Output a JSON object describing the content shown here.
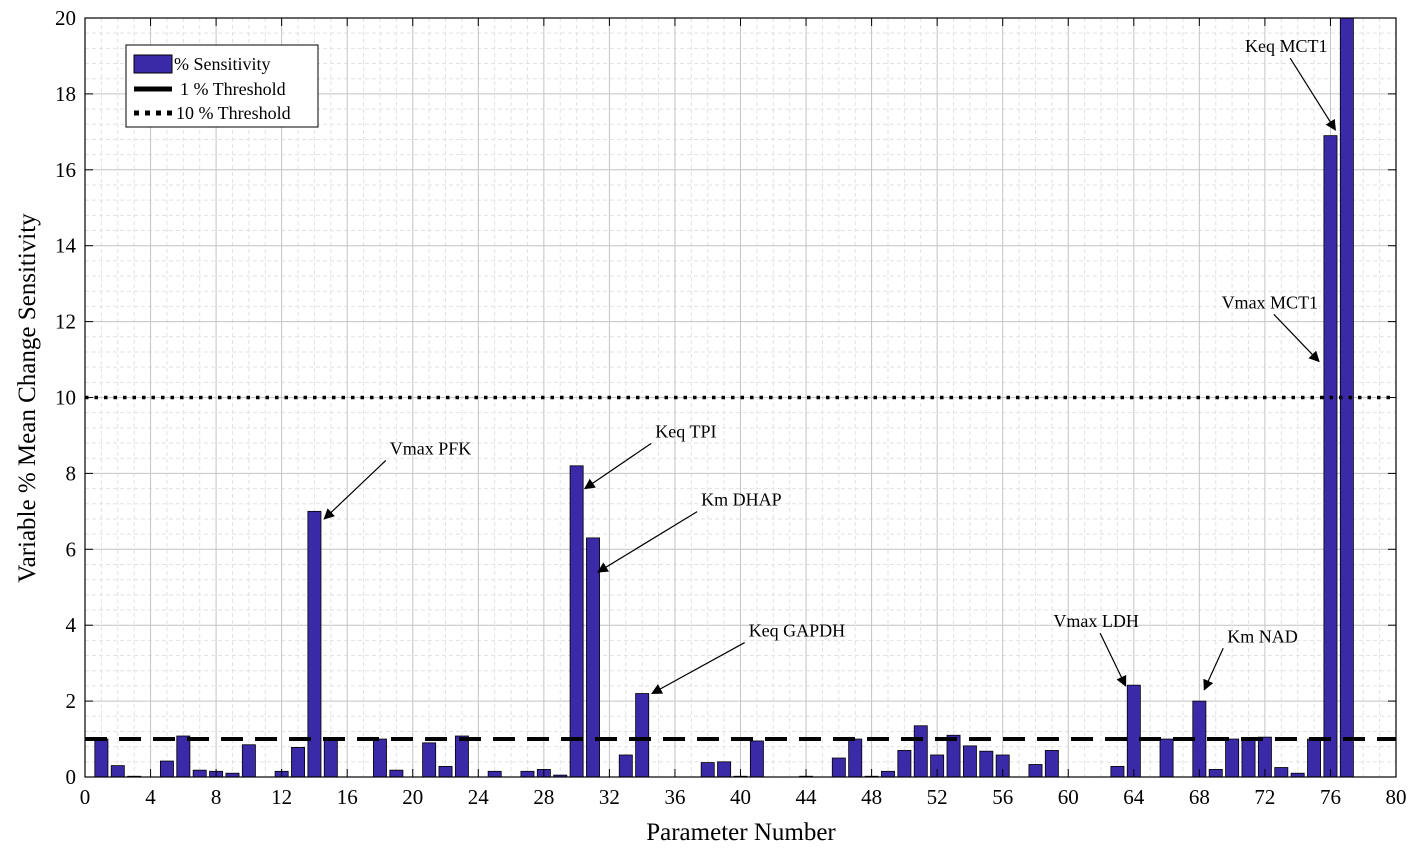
{
  "chart_data": {
    "type": "bar",
    "title": "",
    "xlabel": "Parameter Number",
    "ylabel": "Variable % Mean Change Sensitivity",
    "xlim": [
      0,
      80
    ],
    "ylim": [
      0,
      20
    ],
    "xticks": [
      0,
      4,
      8,
      12,
      16,
      20,
      24,
      28,
      32,
      36,
      40,
      44,
      48,
      52,
      56,
      60,
      64,
      68,
      72,
      76,
      80
    ],
    "yticks": [
      0,
      2,
      4,
      6,
      8,
      10,
      12,
      14,
      16,
      18,
      20
    ],
    "grid": true,
    "minor_grid": true,
    "legend_position": "top-left",
    "bar_color": "#3b2aa8",
    "series": [
      {
        "name": "% Sensitivity",
        "x": [
          1,
          2,
          3,
          4,
          5,
          6,
          7,
          8,
          9,
          10,
          11,
          12,
          13,
          14,
          15,
          16,
          17,
          18,
          19,
          20,
          21,
          22,
          23,
          24,
          25,
          26,
          27,
          28,
          29,
          30,
          31,
          32,
          33,
          34,
          35,
          36,
          37,
          38,
          39,
          40,
          41,
          42,
          43,
          44,
          45,
          46,
          47,
          48,
          49,
          50,
          51,
          52,
          53,
          54,
          55,
          56,
          57,
          58,
          59,
          60,
          61,
          62,
          63,
          64,
          65,
          66,
          67,
          68,
          69,
          70,
          71,
          72,
          73,
          74,
          75,
          76,
          77
        ],
        "values": [
          1.0,
          0.3,
          0.02,
          0.0,
          0.42,
          1.08,
          0.18,
          0.15,
          0.1,
          0.85,
          0.0,
          0.15,
          0.78,
          7.0,
          1.0,
          0.0,
          0.0,
          1.0,
          0.18,
          0.0,
          0.9,
          0.28,
          1.08,
          0.0,
          0.15,
          0.0,
          0.15,
          0.2,
          0.05,
          8.2,
          6.3,
          0.0,
          0.58,
          2.2,
          0.0,
          0.0,
          0.0,
          0.38,
          0.4,
          0.02,
          0.95,
          0.0,
          0.0,
          0.02,
          0.0,
          0.5,
          1.0,
          0.02,
          0.15,
          0.7,
          1.35,
          0.58,
          1.1,
          0.82,
          0.68,
          0.58,
          0.0,
          0.33,
          0.7,
          0.0,
          0.0,
          0.0,
          0.28,
          2.42,
          0.0,
          1.0,
          0.0,
          2.0,
          0.2,
          1.0,
          1.0,
          1.05,
          0.25,
          0.1,
          1.0,
          16.9,
          20.0
        ]
      }
    ],
    "thresholds": [
      {
        "name": "1 % Threshold",
        "value": 1,
        "style": "dashed"
      },
      {
        "name": "10 % Threshold",
        "value": 10,
        "style": "dotted"
      }
    ],
    "annotations": [
      {
        "text": "Vmax PFK",
        "label_x": 18.6,
        "label_y": 8.5,
        "tip_x": 14.6,
        "tip_y": 6.8
      },
      {
        "text": "Keq TPI",
        "label_x": 34.8,
        "label_y": 8.95,
        "tip_x": 30.5,
        "tip_y": 7.6
      },
      {
        "text": "Km DHAP",
        "label_x": 37.6,
        "label_y": 7.15,
        "tip_x": 31.3,
        "tip_y": 5.4
      },
      {
        "text": "Keq GAPDH",
        "label_x": 40.5,
        "label_y": 3.7,
        "tip_x": 34.6,
        "tip_y": 2.2
      },
      {
        "text": "Vmax LDH",
        "label_x": 61.7,
        "label_y": 3.95,
        "tip_x": 63.5,
        "tip_y": 2.4
      },
      {
        "text": "Km NAD",
        "label_x": 69.7,
        "label_y": 3.55,
        "tip_x": 68.3,
        "tip_y": 2.3
      },
      {
        "text": "Keq MCT1",
        "label_x": 73.3,
        "label_y": 19.1,
        "tip_x": 76.3,
        "tip_y": 17.05
      },
      {
        "text": "Vmax MCT1",
        "label_x": 72.3,
        "label_y": 12.35,
        "tip_x": 75.3,
        "tip_y": 10.95
      }
    ]
  }
}
